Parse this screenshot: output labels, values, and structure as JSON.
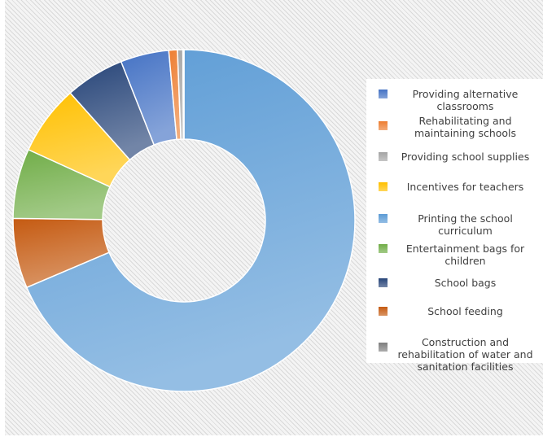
{
  "chart_data": {
    "type": "pie",
    "variant": "donut",
    "title": "",
    "legend_position": "right",
    "grid": false,
    "start_angle_deg": 0,
    "direction": "clockwise",
    "slices": [
      {
        "label": "Printing the school curriculum",
        "value": 67.5,
        "color": "#5b9bd5"
      },
      {
        "label": "School feeding",
        "value": 6.5,
        "color": "#c55a11"
      },
      {
        "label": "Entertainment bags for children",
        "value": 6.5,
        "color": "#70ad47"
      },
      {
        "label": "Incentives for teachers",
        "value": 6.5,
        "color": "#ffc000"
      },
      {
        "label": "School bags",
        "value": 5.5,
        "color": "#264478"
      },
      {
        "label": "Providing alternative classrooms",
        "value": 4.5,
        "color": "#4472c4"
      },
      {
        "label": "Rehabilitating and maintaining schools",
        "value": 0.8,
        "color": "#ed7d31"
      },
      {
        "label": "Providing school supplies",
        "value": 0.5,
        "color": "#a5a5a5"
      },
      {
        "label": "Construction and rehabilitation of water and sanitation facilities",
        "value": 0.1,
        "color": "#7f7f7f"
      }
    ],
    "legend": [
      {
        "label": "Providing alternative classrooms",
        "color": "#4472c4"
      },
      {
        "label": "Rehabilitating and maintaining schools",
        "color": "#ed7d31"
      },
      {
        "label": "Providing school supplies",
        "color": "#a5a5a5"
      },
      {
        "label": "Incentives for teachers",
        "color": "#ffc000"
      },
      {
        "label": "Printing the school curriculum",
        "color": "#5b9bd5"
      },
      {
        "label": "Entertainment bags for children",
        "color": "#70ad47"
      },
      {
        "label": "School bags",
        "color": "#264478"
      },
      {
        "label": "School feeding",
        "color": "#c55a11"
      },
      {
        "label": "Construction and rehabilitation of water and sanitation facilities",
        "color": "#7f7f7f"
      }
    ]
  }
}
